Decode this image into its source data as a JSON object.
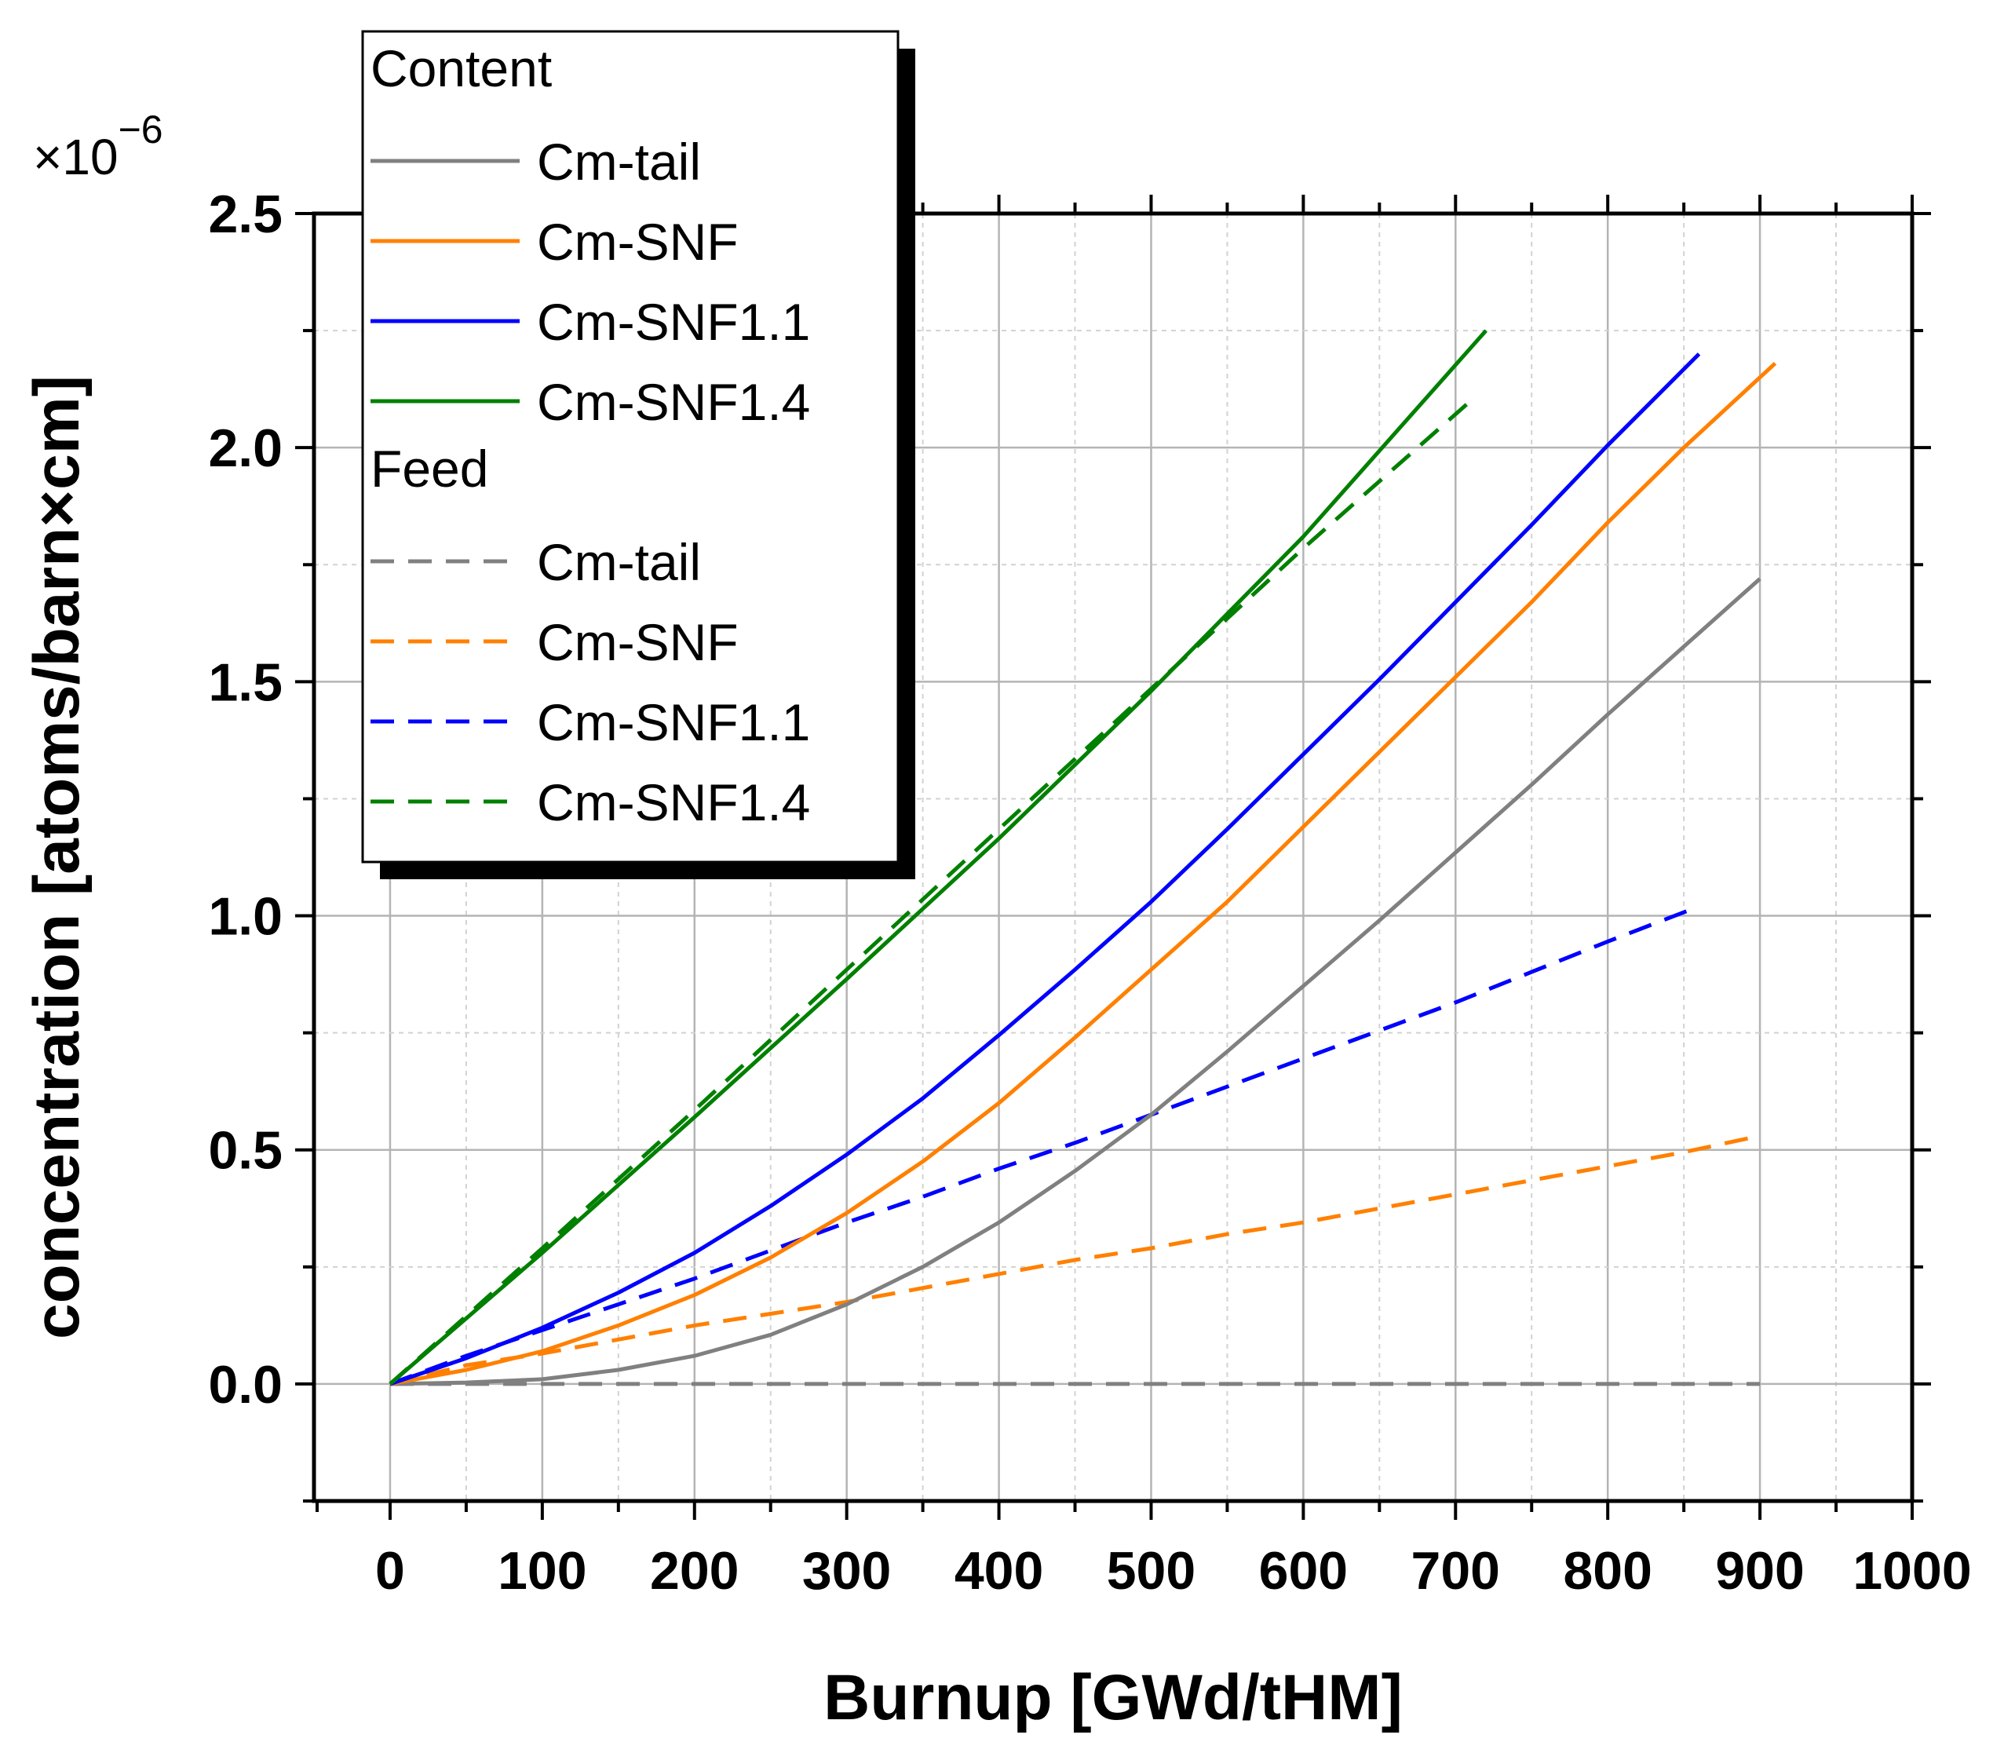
{
  "chart_data": {
    "type": "line",
    "title": "",
    "xlabel": "Burnup [GWd/tHM]",
    "ylabel": "concentration [atoms/barn×cm]",
    "y_multiplier": "×10",
    "y_exponent": "−6",
    "xlim": [
      -50,
      1000
    ],
    "ylim": [
      -0.25,
      2.5
    ],
    "x_ticks": [
      0,
      100,
      200,
      300,
      400,
      500,
      600,
      700,
      800,
      900,
      1000
    ],
    "y_ticks": [
      0.0,
      0.5,
      1.0,
      1.5,
      2.0,
      2.5
    ],
    "x_tick_labels": [
      "0",
      "100",
      "200",
      "300",
      "400",
      "500",
      "600",
      "700",
      "800",
      "900",
      "1000"
    ],
    "y_tick_labels": [
      "0.0",
      "0.5",
      "1.0",
      "1.5",
      "2.0",
      "2.5"
    ],
    "grid": true,
    "legend": {
      "placement": "top-left",
      "groups": [
        {
          "title": "Content",
          "entries": [
            "Cm-tail",
            "Cm-SNF",
            "Cm-SNF1.1",
            "Cm-SNF1.4"
          ]
        },
        {
          "title": "Feed",
          "entries": [
            "Cm-tail",
            "Cm-SNF",
            "Cm-SNF1.1",
            "Cm-SNF1.4"
          ]
        }
      ]
    },
    "series": [
      {
        "name": "Cm-tail",
        "group": "Content",
        "style": "solid",
        "color": "#808080",
        "x": [
          0,
          50,
          100,
          150,
          200,
          250,
          300,
          350,
          400,
          450,
          500,
          550,
          600,
          650,
          700,
          750,
          800,
          850,
          900
        ],
        "y": [
          0,
          0.003,
          0.01,
          0.03,
          0.06,
          0.105,
          0.17,
          0.25,
          0.345,
          0.455,
          0.575,
          0.71,
          0.85,
          0.99,
          1.135,
          1.28,
          1.43,
          1.575,
          1.72
        ]
      },
      {
        "name": "Cm-SNF",
        "group": "Content",
        "style": "solid",
        "color": "#ff8000",
        "x": [
          0,
          50,
          100,
          150,
          200,
          250,
          300,
          350,
          400,
          450,
          500,
          550,
          600,
          650,
          700,
          750,
          800,
          850,
          910
        ],
        "y": [
          0,
          0.03,
          0.07,
          0.125,
          0.19,
          0.27,
          0.365,
          0.475,
          0.6,
          0.74,
          0.885,
          1.03,
          1.19,
          1.35,
          1.51,
          1.67,
          1.84,
          2.0,
          2.18
        ]
      },
      {
        "name": "Cm-SNF1.1",
        "group": "Content",
        "style": "solid",
        "color": "#0000ff",
        "x": [
          0,
          50,
          100,
          150,
          200,
          250,
          300,
          350,
          400,
          450,
          500,
          550,
          600,
          650,
          700,
          750,
          800,
          860
        ],
        "y": [
          0,
          0.055,
          0.12,
          0.195,
          0.28,
          0.38,
          0.49,
          0.61,
          0.745,
          0.885,
          1.03,
          1.185,
          1.345,
          1.505,
          1.67,
          1.835,
          2.005,
          2.2
        ]
      },
      {
        "name": "Cm-SNF1.4",
        "group": "Content",
        "style": "solid",
        "color": "#008000",
        "x": [
          0,
          100,
          200,
          300,
          400,
          500,
          600,
          720
        ],
        "y": [
          0,
          0.28,
          0.57,
          0.865,
          1.165,
          1.48,
          1.81,
          2.25
        ]
      },
      {
        "name": "Cm-tail",
        "group": "Feed",
        "style": "dashed",
        "color": "#808080",
        "x": [
          0,
          100,
          200,
          300,
          400,
          500,
          600,
          700,
          800,
          900
        ],
        "y": [
          0,
          0,
          0,
          0,
          0,
          0,
          0,
          0,
          0,
          0
        ]
      },
      {
        "name": "Cm-SNF",
        "group": "Feed",
        "style": "dashed",
        "color": "#ff8000",
        "x": [
          0,
          50,
          100,
          150,
          200,
          250,
          300,
          350,
          400,
          450,
          500,
          550,
          600,
          650,
          700,
          750,
          800,
          850,
          900
        ],
        "y": [
          0,
          0.04,
          0.065,
          0.095,
          0.125,
          0.15,
          0.175,
          0.205,
          0.235,
          0.265,
          0.29,
          0.32,
          0.345,
          0.375,
          0.405,
          0.435,
          0.465,
          0.495,
          0.53
        ]
      },
      {
        "name": "Cm-SNF1.1",
        "group": "Feed",
        "style": "dashed",
        "color": "#0000ff",
        "x": [
          0,
          50,
          100,
          150,
          200,
          250,
          300,
          350,
          400,
          450,
          500,
          550,
          600,
          650,
          700,
          750,
          800,
          860
        ],
        "y": [
          0,
          0.06,
          0.115,
          0.17,
          0.225,
          0.285,
          0.345,
          0.4,
          0.46,
          0.515,
          0.575,
          0.635,
          0.695,
          0.755,
          0.815,
          0.88,
          0.945,
          1.02
        ]
      },
      {
        "name": "Cm-SNF1.4",
        "group": "Feed",
        "style": "dashed",
        "color": "#008000",
        "x": [
          0,
          100,
          200,
          300,
          400,
          500,
          600,
          710
        ],
        "y": [
          0,
          0.29,
          0.585,
          0.885,
          1.185,
          1.485,
          1.785,
          2.1
        ]
      }
    ]
  }
}
